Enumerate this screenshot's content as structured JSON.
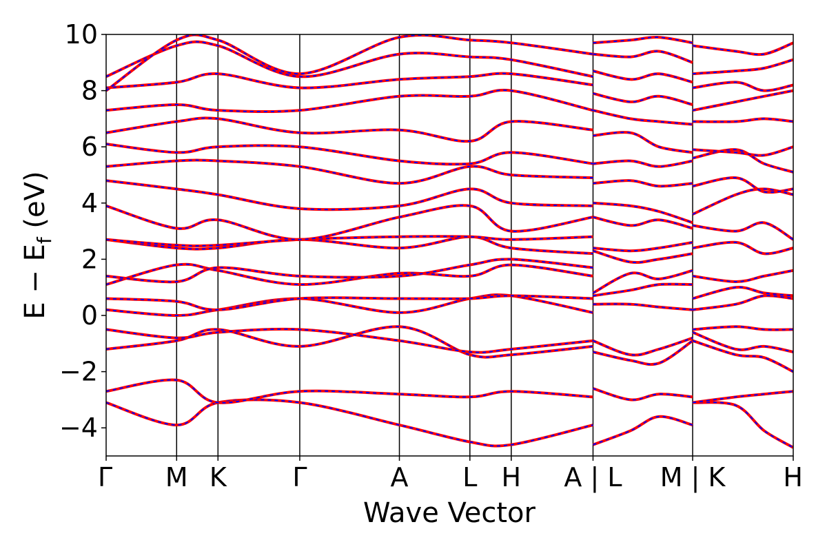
{
  "chart_data": {
    "type": "line",
    "xlabel": "Wave Vector",
    "ylabel_main": "E − E",
    "ylabel_sub": "f",
    "ylabel_unit": " (eV)",
    "ylim": [
      -5,
      10
    ],
    "yticks": [
      {
        "value": -4,
        "label": "−4"
      },
      {
        "value": -2,
        "label": "−2"
      },
      {
        "value": 0,
        "label": "0"
      },
      {
        "value": 2,
        "label": "2"
      },
      {
        "value": 4,
        "label": "4"
      },
      {
        "value": 6,
        "label": "6"
      },
      {
        "value": 8,
        "label": "8"
      },
      {
        "value": 10,
        "label": "10"
      }
    ],
    "xlim": [
      0,
      7.31
    ],
    "kpoints": [
      {
        "x": 0.0,
        "label": "Γ"
      },
      {
        "x": 0.75,
        "label": "M"
      },
      {
        "x": 1.19,
        "label": "K"
      },
      {
        "x": 2.06,
        "label": "Γ"
      },
      {
        "x": 3.12,
        "label": "A"
      },
      {
        "x": 3.87,
        "label": "L"
      },
      {
        "x": 4.31,
        "label": "H"
      },
      {
        "x": 5.18,
        "label": "A | L"
      },
      {
        "x": 6.24,
        "label": "M | K"
      },
      {
        "x": 7.31,
        "label": "H"
      }
    ],
    "series_colors": {
      "dft": "#ff0000",
      "wannier": "#0000ff"
    },
    "segments": [
      {
        "x": [
          0.0,
          0.75,
          1.19,
          2.06,
          3.12,
          3.87,
          4.31,
          5.18
        ],
        "bands": [
          [
            -3.1,
            -3.9,
            -3.1,
            -3.1,
            -3.9,
            -4.5,
            -4.6,
            -3.9
          ],
          [
            -2.7,
            -2.3,
            -3.1,
            -2.7,
            -2.8,
            -2.9,
            -2.7,
            -2.9
          ],
          [
            -1.2,
            -0.9,
            -0.5,
            -1.1,
            -0.4,
            -1.4,
            -1.4,
            -1.1
          ],
          [
            -0.5,
            -0.8,
            -0.6,
            -0.5,
            -0.9,
            -1.3,
            -1.2,
            -0.9
          ],
          [
            0.2,
            0.0,
            0.2,
            0.6,
            0.1,
            0.6,
            0.7,
            0.1
          ],
          [
            0.6,
            0.5,
            0.2,
            0.6,
            0.6,
            0.6,
            0.7,
            0.6
          ],
          [
            1.1,
            1.8,
            1.6,
            1.1,
            1.5,
            1.4,
            1.8,
            1.4
          ],
          [
            1.4,
            1.2,
            1.7,
            1.4,
            1.4,
            1.8,
            2.0,
            1.7
          ],
          [
            2.7,
            2.4,
            2.4,
            2.7,
            2.4,
            2.8,
            2.4,
            2.2
          ],
          [
            2.7,
            2.5,
            2.5,
            2.7,
            2.8,
            2.8,
            2.7,
            2.8
          ],
          [
            3.9,
            3.1,
            3.4,
            2.7,
            3.5,
            3.9,
            3.0,
            3.5
          ],
          [
            4.8,
            4.5,
            4.3,
            3.8,
            3.9,
            4.5,
            4.0,
            3.9
          ],
          [
            5.3,
            5.5,
            5.5,
            5.3,
            4.7,
            5.3,
            5.0,
            4.9
          ],
          [
            6.1,
            5.8,
            6.0,
            6.0,
            5.5,
            5.4,
            5.8,
            5.4
          ],
          [
            6.5,
            6.9,
            7.0,
            6.5,
            6.6,
            6.2,
            6.9,
            6.6
          ],
          [
            7.3,
            7.5,
            7.3,
            7.3,
            7.8,
            7.8,
            8.0,
            7.3
          ],
          [
            8.1,
            8.3,
            8.6,
            8.1,
            8.4,
            8.5,
            8.6,
            8.2
          ],
          [
            8.5,
            9.6,
            9.6,
            8.5,
            9.3,
            9.2,
            9.1,
            8.5
          ],
          [
            8.0,
            9.8,
            9.8,
            8.6,
            9.9,
            9.8,
            9.7,
            9.3
          ]
        ]
      },
      {
        "x": [
          5.18,
          5.58,
          5.88,
          6.24
        ],
        "bands": [
          [
            -4.6,
            -4.1,
            -3.6,
            -3.9
          ],
          [
            -2.6,
            -3.0,
            -2.8,
            -2.9
          ],
          [
            -1.3,
            -1.6,
            -1.7,
            -0.9
          ],
          [
            -0.9,
            -1.4,
            -1.2,
            -0.8
          ],
          [
            0.4,
            0.4,
            0.3,
            0.2
          ],
          [
            0.7,
            0.9,
            1.1,
            1.1
          ],
          [
            0.8,
            1.5,
            1.3,
            1.6
          ],
          [
            2.3,
            1.9,
            2.0,
            2.2
          ],
          [
            2.4,
            2.3,
            2.4,
            2.6
          ],
          [
            3.5,
            3.2,
            3.4,
            3.1
          ],
          [
            4.0,
            3.9,
            3.7,
            3.3
          ],
          [
            4.7,
            4.8,
            4.6,
            4.7
          ],
          [
            5.4,
            5.5,
            5.3,
            5.5
          ],
          [
            6.4,
            6.5,
            6.0,
            5.8
          ],
          [
            7.3,
            7.0,
            6.9,
            6.8
          ],
          [
            7.9,
            7.6,
            7.8,
            7.5
          ],
          [
            8.7,
            8.4,
            8.6,
            8.3
          ],
          [
            9.3,
            9.2,
            9.4,
            9.0
          ],
          [
            9.7,
            9.8,
            9.9,
            9.7
          ]
        ]
      },
      {
        "x": [
          6.24,
          6.7,
          7.0,
          7.31
        ],
        "bands": [
          [
            -3.1,
            -3.2,
            -4.1,
            -4.7
          ],
          [
            -3.1,
            -2.9,
            -2.8,
            -2.7
          ],
          [
            -0.9,
            -1.4,
            -1.5,
            -2.0
          ],
          [
            -0.6,
            -1.2,
            -1.1,
            -1.3
          ],
          [
            -0.5,
            -0.4,
            -0.5,
            -0.5
          ],
          [
            0.2,
            0.4,
            0.7,
            0.6
          ],
          [
            0.6,
            1.0,
            0.8,
            0.7
          ],
          [
            1.4,
            1.2,
            1.4,
            1.6
          ],
          [
            2.4,
            2.6,
            2.2,
            2.4
          ],
          [
            3.2,
            3.0,
            3.3,
            2.7
          ],
          [
            3.6,
            4.3,
            4.5,
            4.3
          ],
          [
            4.6,
            4.9,
            4.4,
            4.5
          ],
          [
            5.6,
            5.9,
            5.4,
            5.1
          ],
          [
            5.9,
            5.8,
            5.7,
            6.0
          ],
          [
            6.9,
            6.9,
            7.0,
            6.9
          ],
          [
            7.3,
            7.6,
            7.8,
            8.0
          ],
          [
            8.1,
            8.3,
            8.0,
            8.2
          ],
          [
            8.6,
            8.7,
            8.8,
            9.1
          ],
          [
            9.6,
            9.4,
            9.3,
            9.7
          ]
        ]
      }
    ]
  }
}
